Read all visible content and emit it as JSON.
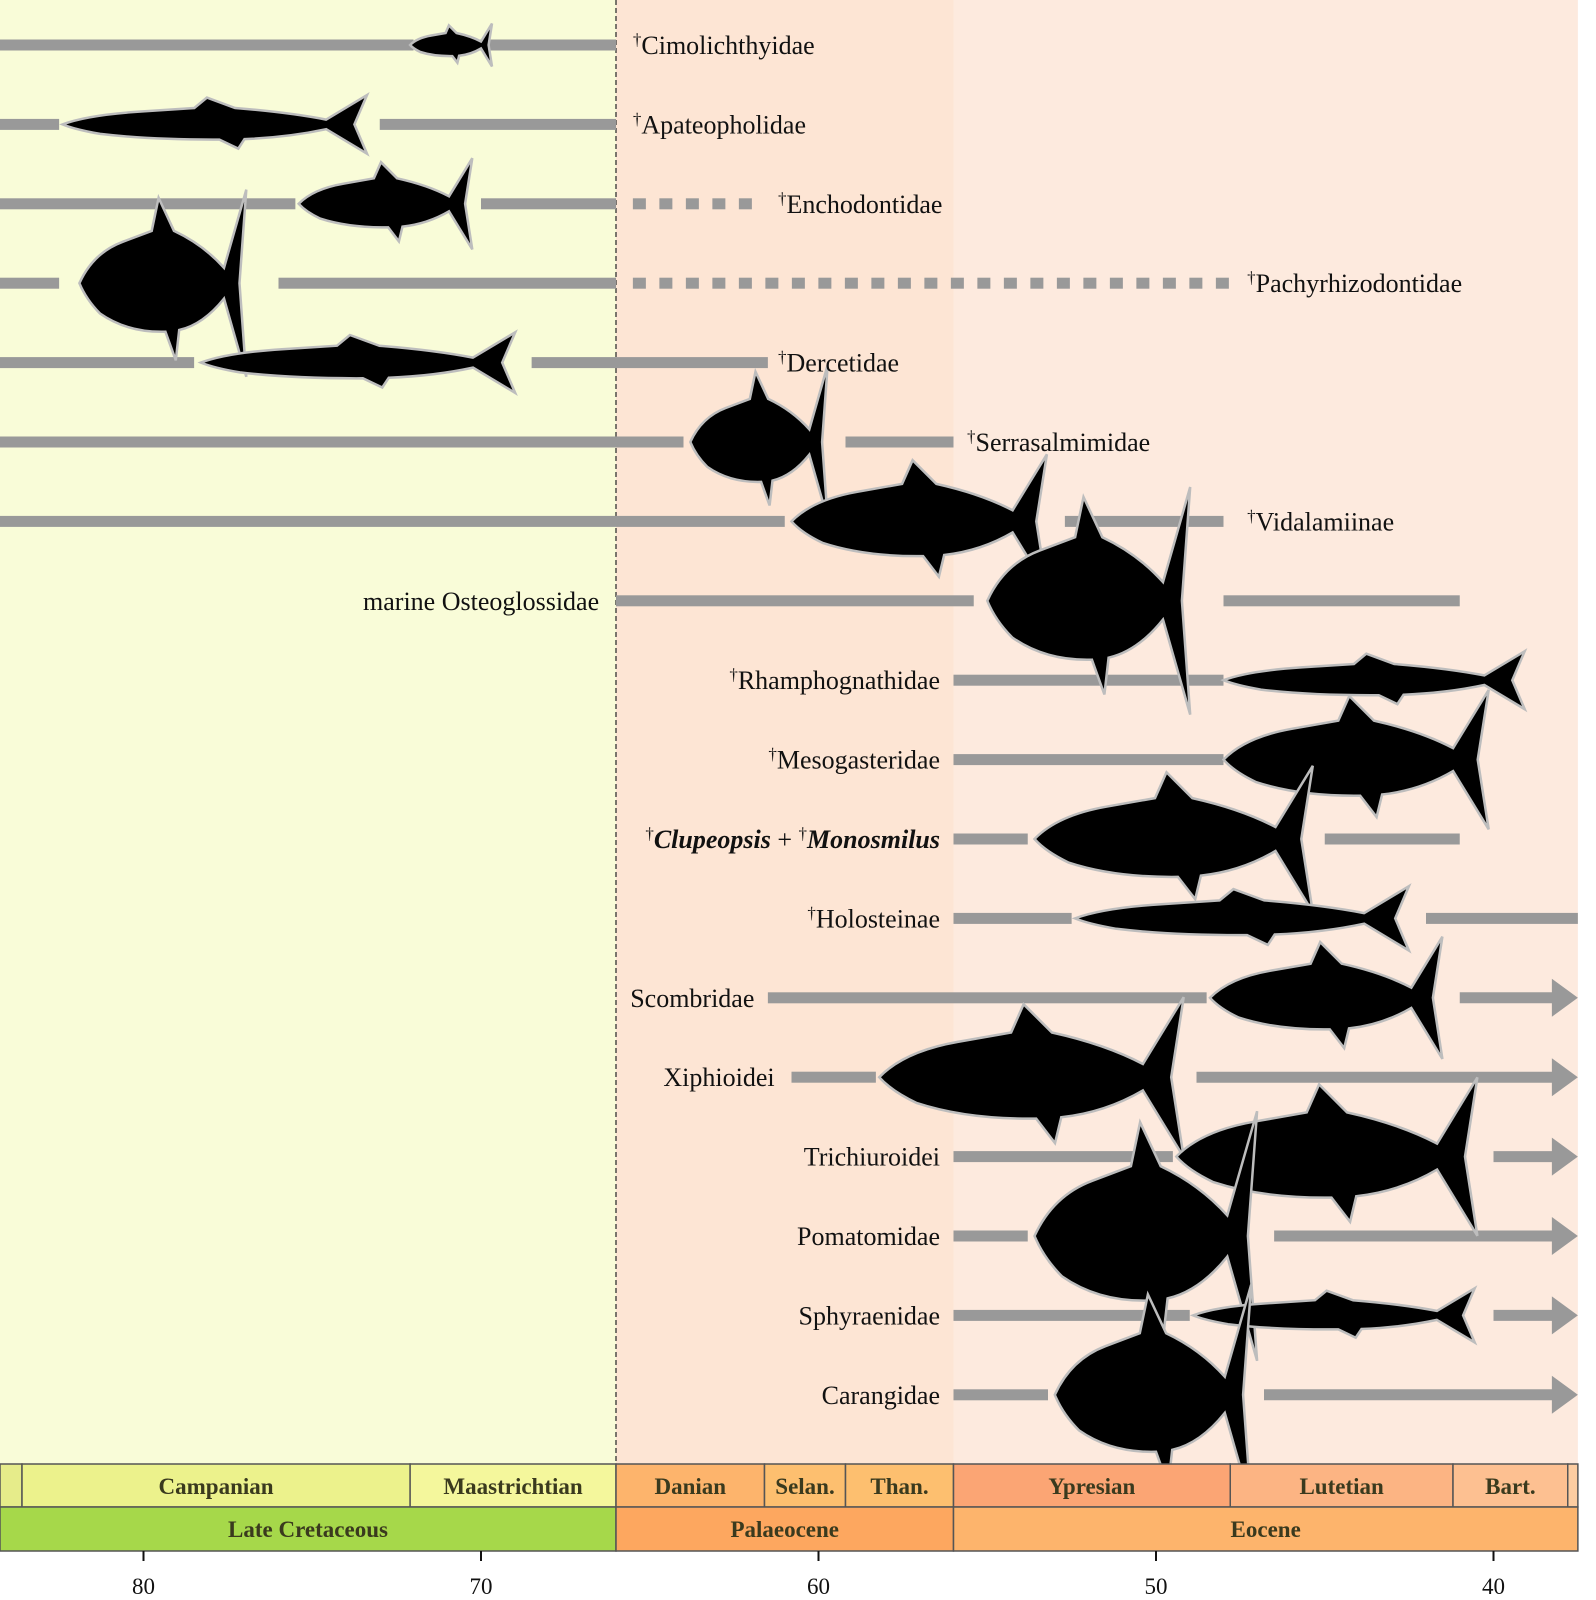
{
  "taxa": [
    {
      "name": "Cimolichthyidae",
      "dagger": true,
      "segments": [
        [
          84.5,
          72.0
        ],
        [
          70.5,
          66.0
        ]
      ],
      "dashed": null,
      "fish": [
        72.1,
        69.6
      ],
      "label_side": "right",
      "label_age": 65.5
    },
    {
      "name": "Apateopholidae",
      "dagger": true,
      "segments": [
        [
          84.5,
          82.5
        ],
        [
          73.0,
          66.0
        ]
      ],
      "dashed": null,
      "fish": [
        82.4,
        73.1
      ],
      "label_side": "right",
      "label_age": 65.5
    },
    {
      "name": "Enchodontidae",
      "dagger": true,
      "segments": [
        [
          84.5,
          75.5
        ],
        [
          70.0,
          66.0
        ]
      ],
      "dashed": [
        65.5,
        61.5
      ],
      "fish": [
        75.4,
        70.1
      ],
      "label_side": "right",
      "label_age": 61.2
    },
    {
      "name": "Pachyrhizodontidae",
      "dagger": true,
      "segments": [
        [
          84.5,
          82.5
        ],
        [
          76.0,
          66.0
        ]
      ],
      "dashed": [
        65.5,
        47.5
      ],
      "fish": [
        81.9,
        76.8
      ],
      "label_side": "right",
      "label_age": 47.3
    },
    {
      "name": "Dercetidae",
      "dagger": true,
      "segments": [
        [
          84.5,
          78.5
        ],
        [
          68.5,
          61.5
        ]
      ],
      "dashed": null,
      "fish": [
        78.3,
        68.7
      ],
      "label_side": "right",
      "label_age": 61.2
    },
    {
      "name": "Serrasalmimidae",
      "dagger": true,
      "segments": [
        [
          84.5,
          64.0
        ],
        [
          59.2,
          56.0
        ]
      ],
      "dashed": null,
      "fish": [
        63.8,
        59.6
      ],
      "label_side": "right",
      "label_age": 55.6
    },
    {
      "name": "Vidalamiinae",
      "dagger": true,
      "segments": [
        [
          84.5,
          61.0
        ],
        [
          52.7,
          48.0
        ]
      ],
      "dashed": null,
      "fish": [
        60.8,
        53.0
      ],
      "label_side": "right",
      "label_age": 47.3
    },
    {
      "name": "marine Osteoglossidae",
      "dagger": false,
      "segments": [
        [
          66.0,
          55.4
        ],
        [
          48.0,
          41.0
        ]
      ],
      "dashed": null,
      "fish": [
        55.0,
        48.8
      ],
      "label_side": "left",
      "label_age": 66.5
    },
    {
      "name": "Rhamphognathidae",
      "dagger": true,
      "segments": [
        [
          56.0,
          48.0
        ]
      ],
      "dashed": null,
      "fish": [
        48.0,
        38.8
      ],
      "label_side": "left",
      "label_age": 56.4
    },
    {
      "name": "Mesogasteridae",
      "dagger": true,
      "segments": [
        [
          56.0,
          48.0
        ]
      ],
      "dashed": null,
      "fish": [
        48.0,
        39.9
      ],
      "label_side": "left",
      "label_age": 56.4
    },
    {
      "name": "Clupeopsis + Monosmilus",
      "label_rich": true,
      "segments": [
        [
          56.0,
          53.8
        ],
        [
          45.0,
          41.0
        ]
      ],
      "dashed": null,
      "fish": [
        53.6,
        45.1
      ],
      "label_side": "left",
      "label_age": 56.4
    },
    {
      "name": "Holosteinae",
      "dagger": true,
      "segments": [
        [
          56.0,
          52.5
        ],
        [
          42.0,
          37.5
        ]
      ],
      "dashed": null,
      "fish": [
        52.4,
        42.2
      ],
      "label_side": "left",
      "label_age": 56.4
    },
    {
      "name": "Scombridae",
      "dagger": false,
      "segments": [
        [
          61.5,
          48.5
        ]
      ],
      "arrow": [
        41.0,
        37.5
      ],
      "dashed": null,
      "fish": [
        48.4,
        41.3
      ],
      "label_side": "left",
      "label_age": 61.9
    },
    {
      "name": "Xiphioidei",
      "dagger": false,
      "segments": [
        [
          60.8,
          58.3
        ]
      ],
      "arrow": [
        48.8,
        37.5
      ],
      "dashed": null,
      "fish": [
        58.2,
        48.9
      ],
      "label_side": "left",
      "label_age": 61.3
    },
    {
      "name": "Trichiuroidei",
      "dagger": false,
      "segments": [
        [
          56.0,
          49.5
        ]
      ],
      "arrow": [
        40.0,
        37.5
      ],
      "dashed": null,
      "fish": [
        49.4,
        40.2
      ],
      "label_side": "left",
      "label_age": 56.4
    },
    {
      "name": "Pomatomidae",
      "dagger": false,
      "segments": [
        [
          56.0,
          53.8
        ]
      ],
      "arrow": [
        46.5,
        37.5
      ],
      "dashed": null,
      "fish": [
        53.6,
        46.8
      ],
      "label_side": "left",
      "label_age": 56.4
    },
    {
      "name": "Sphyraenidae",
      "dagger": false,
      "segments": [
        [
          56.0,
          49.0
        ]
      ],
      "arrow": [
        40.0,
        37.5
      ],
      "dashed": null,
      "fish": [
        48.9,
        40.3
      ],
      "label_side": "left",
      "label_age": 56.4
    },
    {
      "name": "Carangidae",
      "dagger": false,
      "segments": [
        [
          56.0,
          53.2
        ]
      ],
      "arrow": [
        46.8,
        37.5
      ],
      "dashed": null,
      "fish": [
        53.0,
        47.0
      ],
      "label_side": "left",
      "label_age": 56.4
    }
  ],
  "clupeopsis_label": {
    "part1": "Clupeopsis",
    "plus": " + ",
    "part2": "Monosmilus"
  },
  "dagger_symbol": "†",
  "stages": [
    {
      "name": "",
      "start": 84.5,
      "end": 83.6,
      "color": "#e6ec8a"
    },
    {
      "name": "Campanian",
      "start": 83.6,
      "end": 72.1,
      "color": "#ecf28c"
    },
    {
      "name": "Maastrichtian",
      "start": 72.1,
      "end": 66.0,
      "color": "#f4f79c"
    },
    {
      "name": "Danian",
      "start": 66.0,
      "end": 61.6,
      "color": "#fdb46c"
    },
    {
      "name": "Selan.",
      "start": 61.6,
      "end": 59.2,
      "color": "#fdbf6f"
    },
    {
      "name": "Than.",
      "start": 59.2,
      "end": 56.0,
      "color": "#fdbf6f"
    },
    {
      "name": "Ypresian",
      "start": 56.0,
      "end": 47.8,
      "color": "#fba574"
    },
    {
      "name": "Lutetian",
      "start": 47.8,
      "end": 41.2,
      "color": "#fcb483"
    },
    {
      "name": "Bart.",
      "start": 41.2,
      "end": 37.8,
      "color": "#fdc091"
    },
    {
      "name": "",
      "start": 37.8,
      "end": 37.5,
      "color": "#fdcda1"
    }
  ],
  "epochs": [
    {
      "name": "Late Cretaceous",
      "start": 84.5,
      "end": 66.0,
      "color": "#a6d84a"
    },
    {
      "name": "Palaeocene",
      "start": 66.0,
      "end": 56.0,
      "color": "#fda75f"
    },
    {
      "name": "Eocene",
      "start": 56.0,
      "end": 37.5,
      "color": "#fdb46c"
    }
  ],
  "background_bands": [
    {
      "start": 84.5,
      "end": 66.0,
      "color": "#f9fcd8"
    },
    {
      "start": 66.0,
      "end": 56.0,
      "color": "#fde5d4"
    },
    {
      "start": 56.0,
      "end": 37.5,
      "color": "#fdeade"
    }
  ],
  "boundary_age": 66.0,
  "axis_ticks": [
    "80",
    "70",
    "60",
    "50",
    "40"
  ]
}
